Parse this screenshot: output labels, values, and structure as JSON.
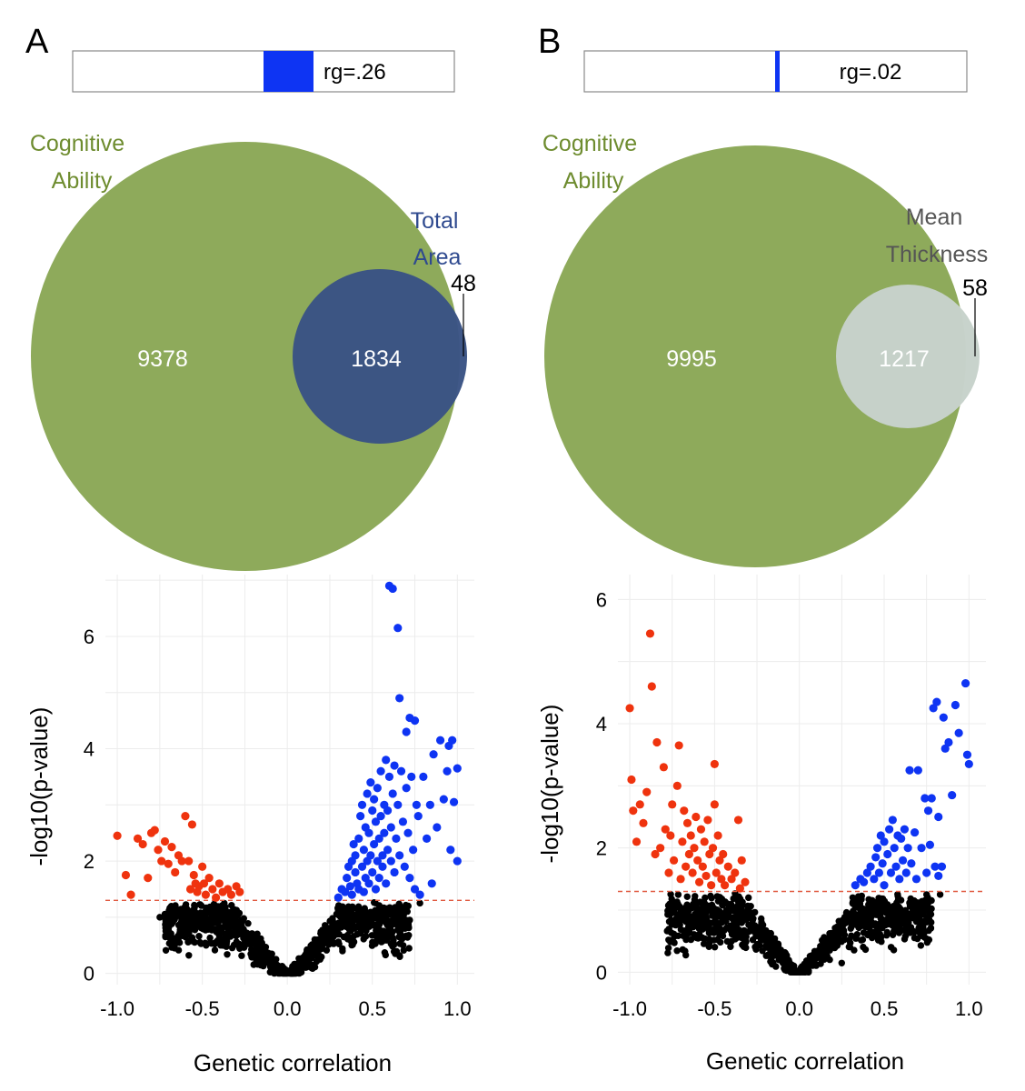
{
  "colors": {
    "green": "#8eaa5b",
    "navy": "#3a5384",
    "lightgrey": "#c7d2cb",
    "blue": "#0e34f3",
    "red": "#ef330e",
    "black": "#000000",
    "sigline": "#e05a40",
    "greenText": "#6e8c2f",
    "navyText": "#2f4a8f",
    "greyText": "#555555",
    "grid": "#ececec"
  },
  "chart_data": [
    {
      "panel": "A",
      "rg_bar": {
        "label": "rg=.26",
        "value": 0.26,
        "range": [
          -1,
          1
        ]
      },
      "venn": {
        "type": "venn",
        "set1": {
          "name_line1": "Cognitive",
          "name_line2": "Ability",
          "count": "9378"
        },
        "set2": {
          "name_line1": "Total",
          "name_line2": "Area",
          "count": "48"
        },
        "overlap": "1834"
      },
      "scatter": {
        "type": "scatter",
        "xlabel": "Genetic correlation",
        "ylabel": "-log10(p-value)",
        "xlim": [
          -1.07,
          1.1
        ],
        "ylim": [
          -0.2,
          7.1
        ],
        "xticks": [
          "-1.0",
          "-0.5",
          "0.0",
          "0.5",
          "1.0"
        ],
        "xtick_values": [
          -1.0,
          -0.5,
          0.0,
          0.5,
          1.0
        ],
        "yticks": [
          "0",
          "2",
          "4",
          "6"
        ],
        "ytick_values": [
          0,
          2,
          4,
          6
        ],
        "threshold": 1.3,
        "neg_points": [
          [
            -1.0,
            2.45
          ],
          [
            -0.95,
            1.75
          ],
          [
            -0.92,
            1.4
          ],
          [
            -0.88,
            2.4
          ],
          [
            -0.85,
            2.3
          ],
          [
            -0.82,
            1.7
          ],
          [
            -0.8,
            2.5
          ],
          [
            -0.78,
            2.55
          ],
          [
            -0.76,
            2.2
          ],
          [
            -0.74,
            2.0
          ],
          [
            -0.72,
            2.35
          ],
          [
            -0.7,
            1.95
          ],
          [
            -0.68,
            2.25
          ],
          [
            -0.66,
            1.8
          ],
          [
            -0.64,
            2.1
          ],
          [
            -0.62,
            2.0
          ],
          [
            -0.6,
            2.8
          ],
          [
            -0.58,
            2.0
          ],
          [
            -0.57,
            1.5
          ],
          [
            -0.56,
            2.65
          ],
          [
            -0.55,
            1.75
          ],
          [
            -0.54,
            1.6
          ],
          [
            -0.53,
            1.45
          ],
          [
            -0.52,
            1.55
          ],
          [
            -0.5,
            1.9
          ],
          [
            -0.49,
            1.6
          ],
          [
            -0.48,
            1.4
          ],
          [
            -0.46,
            1.7
          ],
          [
            -0.44,
            1.5
          ],
          [
            -0.42,
            1.35
          ],
          [
            -0.4,
            1.6
          ],
          [
            -0.38,
            1.45
          ],
          [
            -0.35,
            1.5
          ],
          [
            -0.33,
            1.4
          ],
          [
            -0.3,
            1.55
          ],
          [
            -0.28,
            1.45
          ]
        ],
        "pos_points": [
          [
            0.3,
            1.35
          ],
          [
            0.32,
            1.5
          ],
          [
            0.34,
            1.45
          ],
          [
            0.35,
            1.7
          ],
          [
            0.36,
            1.9
          ],
          [
            0.37,
            1.55
          ],
          [
            0.38,
            1.4
          ],
          [
            0.38,
            2.0
          ],
          [
            0.39,
            2.3
          ],
          [
            0.4,
            1.8
          ],
          [
            0.4,
            2.1
          ],
          [
            0.41,
            1.6
          ],
          [
            0.42,
            2.4
          ],
          [
            0.42,
            1.5
          ],
          [
            0.43,
            2.8
          ],
          [
            0.44,
            1.9
          ],
          [
            0.44,
            3.0
          ],
          [
            0.45,
            2.2
          ],
          [
            0.45,
            1.45
          ],
          [
            0.46,
            2.6
          ],
          [
            0.46,
            1.7
          ],
          [
            0.47,
            3.2
          ],
          [
            0.47,
            2.0
          ],
          [
            0.48,
            2.5
          ],
          [
            0.48,
            1.6
          ],
          [
            0.49,
            3.4
          ],
          [
            0.49,
            2.1
          ],
          [
            0.5,
            2.9
          ],
          [
            0.5,
            1.8
          ],
          [
            0.51,
            2.3
          ],
          [
            0.51,
            3.1
          ],
          [
            0.52,
            1.5
          ],
          [
            0.52,
            2.7
          ],
          [
            0.53,
            2.0
          ],
          [
            0.53,
            3.3
          ],
          [
            0.54,
            2.4
          ],
          [
            0.54,
            1.7
          ],
          [
            0.55,
            2.8
          ],
          [
            0.55,
            3.6
          ],
          [
            0.56,
            2.1
          ],
          [
            0.56,
            1.9
          ],
          [
            0.57,
            3.0
          ],
          [
            0.57,
            2.5
          ],
          [
            0.58,
            3.8
          ],
          [
            0.58,
            1.6
          ],
          [
            0.59,
            2.2
          ],
          [
            0.59,
            2.9
          ],
          [
            0.6,
            6.9
          ],
          [
            0.6,
            3.5
          ],
          [
            0.61,
            2.0
          ],
          [
            0.61,
            2.6
          ],
          [
            0.62,
            6.85
          ],
          [
            0.62,
            3.2
          ],
          [
            0.63,
            1.8
          ],
          [
            0.63,
            3.7
          ],
          [
            0.64,
            2.4
          ],
          [
            0.65,
            6.15
          ],
          [
            0.65,
            3.0
          ],
          [
            0.66,
            4.9
          ],
          [
            0.66,
            2.1
          ],
          [
            0.67,
            3.6
          ],
          [
            0.68,
            2.7
          ],
          [
            0.69,
            1.9
          ],
          [
            0.7,
            3.3
          ],
          [
            0.7,
            4.3
          ],
          [
            0.71,
            2.5
          ],
          [
            0.72,
            4.55
          ],
          [
            0.72,
            1.7
          ],
          [
            0.73,
            3.5
          ],
          [
            0.74,
            2.2
          ],
          [
            0.75,
            4.5
          ],
          [
            0.75,
            1.5
          ],
          [
            0.76,
            3.0
          ],
          [
            0.77,
            2.8
          ],
          [
            0.78,
            1.4
          ],
          [
            0.8,
            3.5
          ],
          [
            0.82,
            2.4
          ],
          [
            0.84,
            3.0
          ],
          [
            0.85,
            1.6
          ],
          [
            0.86,
            3.9
          ],
          [
            0.88,
            2.6
          ],
          [
            0.9,
            4.15
          ],
          [
            0.92,
            3.1
          ],
          [
            0.94,
            3.6
          ],
          [
            0.95,
            4.05
          ],
          [
            0.96,
            2.2
          ],
          [
            0.97,
            4.15
          ],
          [
            0.98,
            3.05
          ],
          [
            1.0,
            3.65
          ],
          [
            1.0,
            2.0
          ]
        ]
      }
    },
    {
      "panel": "B",
      "rg_bar": {
        "label": "rg=.02",
        "value": 0.02,
        "range": [
          -1,
          1
        ]
      },
      "venn": {
        "type": "venn",
        "set1": {
          "name_line1": "Cognitive",
          "name_line2": "Ability",
          "count": "9995"
        },
        "set2": {
          "name_line1": "Mean",
          "name_line2": "Thickness",
          "count": "58"
        },
        "overlap": "1217"
      },
      "scatter": {
        "type": "scatter",
        "xlabel": "Genetic correlation",
        "ylabel": "-log10(p-value)",
        "xlim": [
          -1.07,
          1.1
        ],
        "ylim": [
          -0.2,
          6.4
        ],
        "xticks": [
          "-1.0",
          "-0.5",
          "0.0",
          "0.5",
          "1.0"
        ],
        "xtick_values": [
          -1.0,
          -0.5,
          0.0,
          0.5,
          1.0
        ],
        "yticks": [
          "0",
          "2",
          "4",
          "6"
        ],
        "ytick_values": [
          0,
          2,
          4,
          6
        ],
        "threshold": 1.3,
        "neg_points": [
          [
            -1.0,
            4.25
          ],
          [
            -0.99,
            3.1
          ],
          [
            -0.98,
            2.6
          ],
          [
            -0.96,
            2.1
          ],
          [
            -0.94,
            2.7
          ],
          [
            -0.92,
            2.4
          ],
          [
            -0.9,
            2.9
          ],
          [
            -0.88,
            5.45
          ],
          [
            -0.87,
            4.6
          ],
          [
            -0.85,
            1.9
          ],
          [
            -0.84,
            3.7
          ],
          [
            -0.82,
            2.0
          ],
          [
            -0.8,
            3.3
          ],
          [
            -0.79,
            2.3
          ],
          [
            -0.77,
            1.6
          ],
          [
            -0.76,
            2.2
          ],
          [
            -0.75,
            2.7
          ],
          [
            -0.74,
            1.8
          ],
          [
            -0.72,
            3.0
          ],
          [
            -0.71,
            3.65
          ],
          [
            -0.7,
            1.5
          ],
          [
            -0.69,
            2.1
          ],
          [
            -0.68,
            2.6
          ],
          [
            -0.67,
            1.7
          ],
          [
            -0.66,
            2.4
          ],
          [
            -0.65,
            1.9
          ],
          [
            -0.64,
            2.2
          ],
          [
            -0.63,
            1.6
          ],
          [
            -0.62,
            2.0
          ],
          [
            -0.61,
            2.5
          ],
          [
            -0.6,
            1.8
          ],
          [
            -0.59,
            1.45
          ],
          [
            -0.58,
            2.3
          ],
          [
            -0.57,
            1.7
          ],
          [
            -0.56,
            2.1
          ],
          [
            -0.55,
            1.55
          ],
          [
            -0.54,
            2.45
          ],
          [
            -0.53,
            1.9
          ],
          [
            -0.52,
            1.4
          ],
          [
            -0.51,
            2.0
          ],
          [
            -0.5,
            3.35
          ],
          [
            -0.5,
            2.7
          ],
          [
            -0.49,
            1.6
          ],
          [
            -0.48,
            2.2
          ],
          [
            -0.47,
            1.8
          ],
          [
            -0.46,
            1.5
          ],
          [
            -0.45,
            1.9
          ],
          [
            -0.44,
            1.4
          ],
          [
            -0.42,
            1.7
          ],
          [
            -0.4,
            1.5
          ],
          [
            -0.38,
            1.6
          ],
          [
            -0.36,
            2.45
          ],
          [
            -0.35,
            1.35
          ],
          [
            -0.34,
            1.8
          ],
          [
            -0.32,
            1.45
          ]
        ],
        "pos_points": [
          [
            0.33,
            1.4
          ],
          [
            0.36,
            1.5
          ],
          [
            0.38,
            1.45
          ],
          [
            0.4,
            1.6
          ],
          [
            0.42,
            1.7
          ],
          [
            0.44,
            1.5
          ],
          [
            0.45,
            1.85
          ],
          [
            0.46,
            2.0
          ],
          [
            0.47,
            1.6
          ],
          [
            0.48,
            2.2
          ],
          [
            0.49,
            1.75
          ],
          [
            0.5,
            1.4
          ],
          [
            0.5,
            2.1
          ],
          [
            0.52,
            1.9
          ],
          [
            0.53,
            2.3
          ],
          [
            0.54,
            1.6
          ],
          [
            0.55,
            2.45
          ],
          [
            0.56,
            2.0
          ],
          [
            0.57,
            1.7
          ],
          [
            0.58,
            2.2
          ],
          [
            0.59,
            1.5
          ],
          [
            0.6,
            2.15
          ],
          [
            0.61,
            1.8
          ],
          [
            0.62,
            2.3
          ],
          [
            0.63,
            1.6
          ],
          [
            0.64,
            2.0
          ],
          [
            0.65,
            3.25
          ],
          [
            0.66,
            1.75
          ],
          [
            0.68,
            2.25
          ],
          [
            0.69,
            1.5
          ],
          [
            0.7,
            3.25
          ],
          [
            0.72,
            2.0
          ],
          [
            0.74,
            2.8
          ],
          [
            0.75,
            1.6
          ],
          [
            0.76,
            2.6
          ],
          [
            0.77,
            2.05
          ],
          [
            0.78,
            2.8
          ],
          [
            0.79,
            4.25
          ],
          [
            0.8,
            1.7
          ],
          [
            0.81,
            4.35
          ],
          [
            0.82,
            2.5
          ],
          [
            0.82,
            1.55
          ],
          [
            0.84,
            1.7
          ],
          [
            0.85,
            4.1
          ],
          [
            0.86,
            3.6
          ],
          [
            0.88,
            3.7
          ],
          [
            0.9,
            2.85
          ],
          [
            0.92,
            4.3
          ],
          [
            0.94,
            3.85
          ],
          [
            0.98,
            4.65
          ],
          [
            0.99,
            3.5
          ],
          [
            1.0,
            3.35
          ]
        ]
      }
    }
  ],
  "panels": [
    {
      "letter": "A"
    },
    {
      "letter": "B"
    }
  ]
}
